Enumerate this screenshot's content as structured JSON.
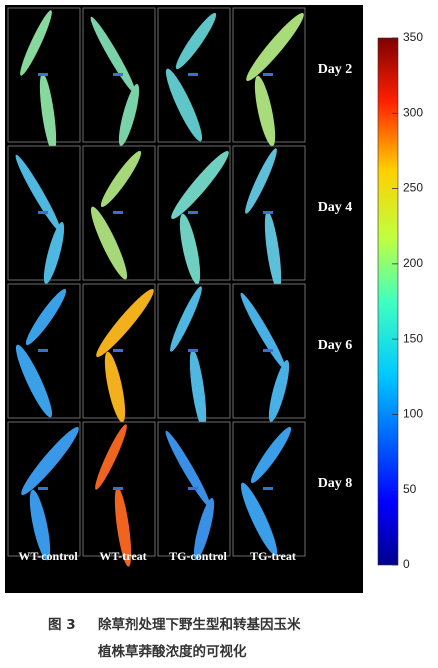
{
  "figure": {
    "rows": [
      "Day 2",
      "Day 4",
      "Day 6",
      "Day 8"
    ],
    "columns": [
      "WT-control",
      "WT-treat",
      "TG-control",
      "TG-treat"
    ],
    "colorbar": {
      "range": [
        0,
        350
      ],
      "ticks": [
        0,
        50,
        100,
        150,
        200,
        250,
        300,
        350
      ]
    },
    "caption": {
      "label": "图 3",
      "lines": [
        "除草剂处理下野生型和转基因玉米",
        "植株草莽酸浓度的可视化"
      ]
    }
  }
}
